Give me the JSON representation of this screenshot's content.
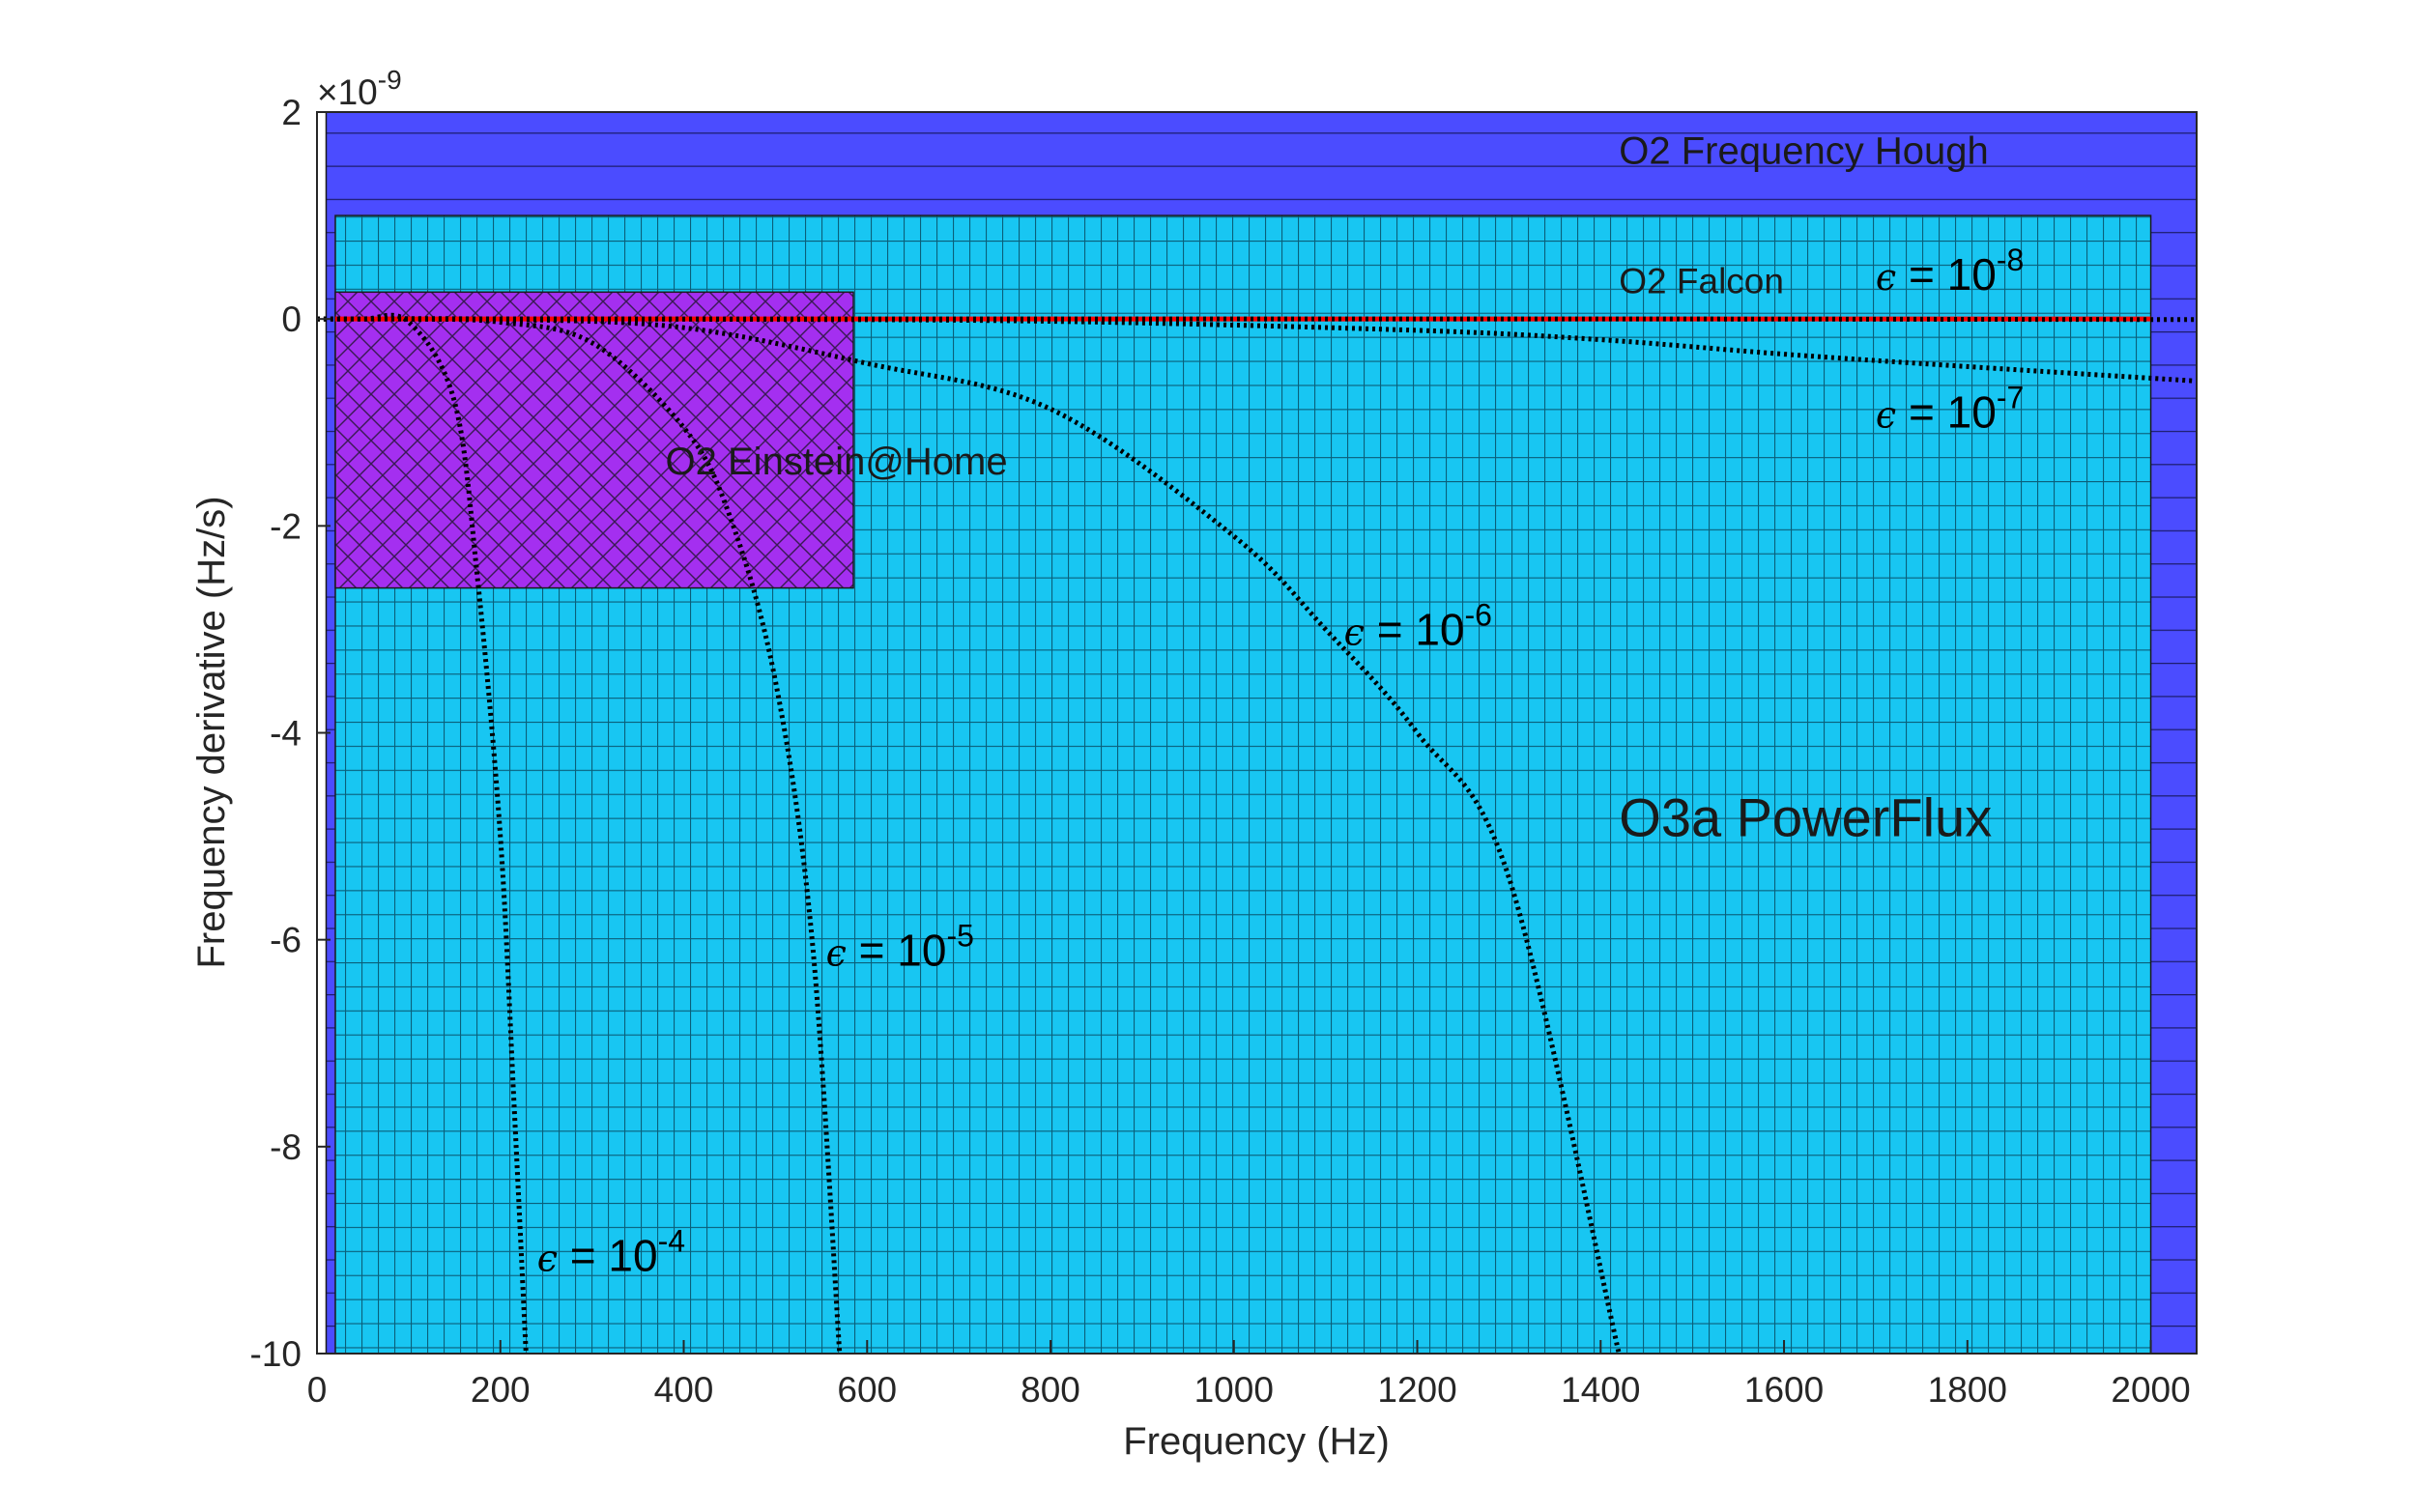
{
  "chart_data": {
    "type": "line",
    "xlabel": "Frequency (Hz)",
    "ylabel": "Frequency derivative (Hz/s)",
    "y_multiplier": "×10",
    "y_multiplier_exp": "-9",
    "xlim": [
      0,
      2050
    ],
    "ylim": [
      -10,
      2
    ],
    "x_ticks": [
      0,
      200,
      400,
      600,
      800,
      1000,
      1200,
      1400,
      1600,
      1800,
      2000
    ],
    "y_ticks": [
      -10,
      -8,
      -6,
      -4,
      -2,
      0,
      2
    ],
    "grid": false,
    "regions": [
      {
        "name": "O2 Frequency Hough",
        "x": [
          10,
          2050
        ],
        "y": [
          -10,
          2
        ],
        "color": "#4b4cff",
        "pattern": "horizontal-lines"
      },
      {
        "name": "O3a PowerFlux",
        "x": [
          20,
          2000
        ],
        "y": [
          -10,
          1
        ],
        "color": "#18c6f2",
        "pattern": "grid"
      },
      {
        "name": "O2 Einstein@Home",
        "x": [
          20,
          585
        ],
        "y": [
          -2.6,
          0.26
        ],
        "color": "#a42ff0",
        "pattern": "crosshatch"
      },
      {
        "name": "O2 Falcon",
        "x": [
          20,
          2000
        ],
        "y": [
          0,
          0
        ],
        "color": "#ff0000",
        "pattern": "line"
      }
    ],
    "series": [
      {
        "label": "10",
        "exponent": "-8",
        "x": [
          0,
          500,
          1000,
          1500,
          2050
        ],
        "y": [
          0,
          0,
          0,
          0,
          -0.006
        ]
      },
      {
        "label": "10",
        "exponent": "-7",
        "x": [
          0,
          400,
          800,
          1200,
          1400,
          1600,
          1800,
          2050
        ],
        "y": [
          0,
          -0.002,
          -0.022,
          -0.11,
          -0.2,
          -0.34,
          -0.46,
          -0.6
        ]
      },
      {
        "label": "10",
        "exponent": "-6",
        "x": [
          0,
          200,
          400,
          600,
          800,
          1000,
          1100,
          1200,
          1300,
          1420
        ],
        "y": [
          0,
          -0.003,
          -0.084,
          -0.43,
          -0.87,
          -2.1,
          -3.0,
          -4.0,
          -5.4,
          -10
        ]
      },
      {
        "label": "10",
        "exponent": "-5",
        "x": [
          0,
          100,
          200,
          300,
          400,
          450,
          500,
          540,
          570
        ],
        "y": [
          0,
          -0.001,
          -0.031,
          -0.23,
          -1.05,
          -1.9,
          -3.5,
          -6.0,
          -10
        ]
      },
      {
        "label": "10",
        "exponent": "-4",
        "x": [
          0,
          50,
          100,
          150,
          175,
          200,
          215,
          228
        ],
        "y": [
          0,
          -0.001,
          -0.03,
          -0.8,
          -2.5,
          -5.0,
          -7.6,
          -10
        ]
      }
    ],
    "annotations": [
      {
        "text": "O2 Frequency Hough",
        "x": 1420,
        "y": 1.5
      },
      {
        "text": "O2 Falcon",
        "x": 1420,
        "y": 0.25
      },
      {
        "text": "O2 Einstein@Home",
        "x": 380,
        "y": -1.5
      },
      {
        "text": "O3a PowerFlux",
        "x": 1420,
        "y": -5.0
      }
    ]
  }
}
